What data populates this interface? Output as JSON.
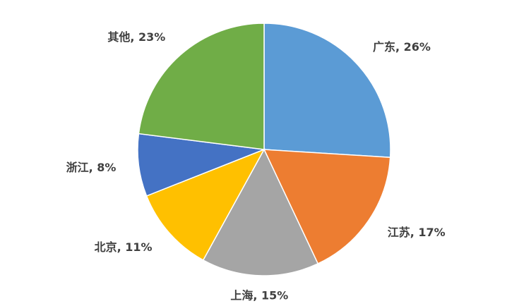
{
  "chart_data": {
    "type": "pie",
    "values": [
      26,
      17,
      15,
      11,
      8,
      23
    ],
    "value_labels": [
      "广东, 26%",
      "江苏, 17%",
      "上海, 15%",
      "北京, 11%",
      "浙江, 8%",
      "其他, 23%"
    ],
    "colors": [
      "#5b9bd5",
      "#ed7d31",
      "#a5a5a5",
      "#ffc000",
      "#4472c4",
      "#70ad47"
    ]
  }
}
